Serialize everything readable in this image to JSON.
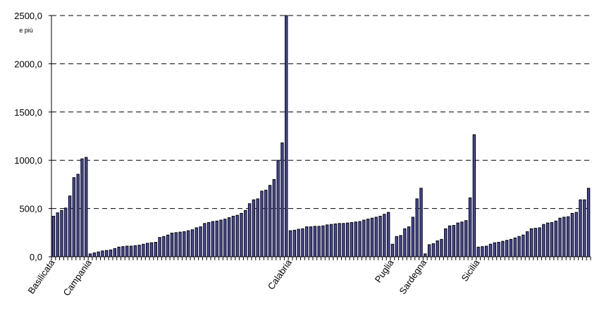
{
  "chart_data": {
    "type": "bar",
    "ylim": [
      0,
      2500
    ],
    "yticks": [
      {
        "value": 0,
        "label": "0,0"
      },
      {
        "value": 500,
        "label": "500,0"
      },
      {
        "value": 1000,
        "label": "1000,0"
      },
      {
        "value": 1500,
        "label": "1500,0"
      },
      {
        "value": 2000,
        "label": "2000,0"
      },
      {
        "value": 2500,
        "label": "2500,0"
      }
    ],
    "top_tick_note": "e più",
    "grid": "horizontal dashed",
    "groups": [
      {
        "label": "Basilicata",
        "values": [
          420,
          455,
          480,
          505,
          630,
          820,
          855,
          1015,
          1030
        ]
      },
      {
        "label": "Campania",
        "values": [
          30,
          40,
          50,
          60,
          65,
          70,
          85,
          100,
          105,
          110,
          110,
          115,
          120,
          130,
          140,
          145,
          150,
          200,
          210,
          225,
          245,
          250,
          255,
          260,
          270,
          280,
          300,
          310,
          345,
          355,
          365,
          370,
          380,
          390,
          405,
          420,
          430,
          450,
          480,
          550,
          590,
          600,
          680,
          690,
          740,
          800,
          1000,
          1180,
          2520
        ]
      },
      {
        "label": "Calabria",
        "values": [
          270,
          275,
          285,
          290,
          310,
          310,
          315,
          315,
          320,
          330,
          335,
          340,
          345,
          345,
          350,
          355,
          360,
          365,
          380,
          390,
          400,
          410,
          420,
          440,
          460
        ]
      },
      {
        "label": "Puglia",
        "values": [
          130,
          210,
          220,
          290,
          310,
          410,
          600,
          710
        ]
      },
      {
        "label": "Sardegna",
        "values": [
          30,
          125,
          135,
          165,
          180,
          290,
          320,
          325,
          350,
          360,
          375,
          610,
          1265
        ]
      },
      {
        "label": "Sicilia",
        "values": [
          100,
          105,
          110,
          130,
          145,
          150,
          160,
          170,
          180,
          195,
          210,
          225,
          260,
          290,
          295,
          300,
          335,
          350,
          355,
          370,
          400,
          410,
          415,
          450,
          460,
          590,
          590,
          710
        ]
      }
    ]
  }
}
